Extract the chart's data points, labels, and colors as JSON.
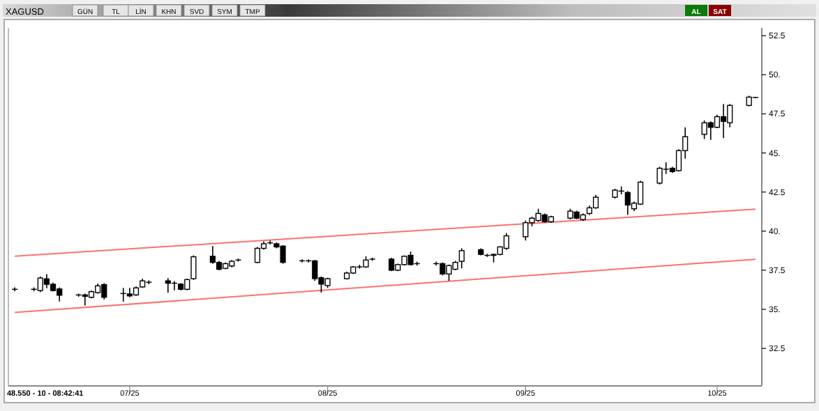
{
  "chart_data": {
    "type": "candlestick",
    "title": "XAGUSD",
    "annotations": [
      "48.550 - 10 - 08:42:41",
      "GÜN",
      "TL",
      "LİN",
      "KHN",
      "SVD",
      "SYM",
      "TMP",
      "AL",
      "SAT"
    ],
    "x": [
      "2025-06-13",
      "2025-06-16",
      "2025-06-17",
      "2025-06-18",
      "2025-06-19",
      "2025-06-20",
      "2025-06-23",
      "2025-06-24",
      "2025-06-25",
      "2025-06-26",
      "2025-06-27",
      "2025-06-30",
      "2025-07-01",
      "2025-07-02",
      "2025-07-03",
      "2025-07-04",
      "2025-07-07",
      "2025-07-08",
      "2025-07-09",
      "2025-07-10",
      "2025-07-11",
      "2025-07-14",
      "2025-07-15",
      "2025-07-16",
      "2025-07-17",
      "2025-07-18",
      "2025-07-21",
      "2025-07-22",
      "2025-07-23",
      "2025-07-24",
      "2025-07-25",
      "2025-07-28",
      "2025-07-29",
      "2025-07-30",
      "2025-07-31",
      "2025-08-01",
      "2025-08-04",
      "2025-08-05",
      "2025-08-06",
      "2025-08-07",
      "2025-08-08",
      "2025-08-11",
      "2025-08-12",
      "2025-08-13",
      "2025-08-14",
      "2025-08-15",
      "2025-08-18",
      "2025-08-19",
      "2025-08-20",
      "2025-08-21",
      "2025-08-22",
      "2025-08-25",
      "2025-08-26",
      "2025-08-27",
      "2025-08-28",
      "2025-08-29",
      "2025-09-01",
      "2025-09-02",
      "2025-09-03",
      "2025-09-04",
      "2025-09-05",
      "2025-09-08",
      "2025-09-09",
      "2025-09-10",
      "2025-09-11",
      "2025-09-12",
      "2025-09-15",
      "2025-09-16",
      "2025-09-17",
      "2025-09-18",
      "2025-09-19",
      "2025-09-22",
      "2025-09-23",
      "2025-09-24",
      "2025-09-25",
      "2025-09-26",
      "2025-09-29",
      "2025-09-30",
      "2025-10-01",
      "2025-10-02",
      "2025-10-03",
      "2025-10-06",
      "2025-10-07"
    ],
    "ohlc": [
      [
        36.28,
        36.4,
        36.15,
        36.28
      ],
      [
        36.28,
        36.4,
        36.15,
        36.28
      ],
      [
        36.2,
        37.1,
        36.1,
        37.0
      ],
      [
        36.95,
        37.25,
        36.35,
        36.6
      ],
      [
        36.6,
        36.7,
        36.15,
        36.2
      ],
      [
        36.3,
        36.4,
        35.5,
        35.9
      ],
      [
        35.92,
        36.0,
        35.8,
        35.92
      ],
      [
        35.92,
        36.0,
        35.25,
        35.83
      ],
      [
        35.77,
        36.2,
        35.7,
        36.13
      ],
      [
        36.07,
        36.65,
        36.0,
        36.5
      ],
      [
        36.58,
        36.67,
        35.63,
        35.77
      ],
      [
        36.01,
        36.37,
        35.48,
        36.01
      ],
      [
        35.98,
        36.37,
        35.77,
        35.86
      ],
      [
        35.92,
        36.46,
        35.86,
        36.37
      ],
      [
        36.43,
        36.96,
        36.37,
        36.82
      ],
      [
        36.73,
        36.85,
        36.6,
        36.73
      ],
      [
        36.82,
        37.0,
        36.07,
        36.67
      ],
      [
        36.67,
        36.8,
        36.22,
        36.67
      ],
      [
        36.61,
        36.67,
        36.22,
        36.28
      ],
      [
        36.28,
        36.96,
        36.22,
        36.9
      ],
      [
        36.96,
        38.45,
        36.88,
        38.36
      ],
      [
        38.39,
        39.04,
        37.92,
        38.0
      ],
      [
        38.0,
        38.1,
        37.5,
        37.56
      ],
      [
        37.62,
        38.0,
        37.56,
        37.92
      ],
      [
        37.77,
        38.15,
        37.68,
        38.07
      ],
      [
        38.15,
        38.25,
        38.05,
        38.15
      ],
      [
        38.0,
        38.99,
        37.95,
        38.9
      ],
      [
        38.9,
        39.34,
        38.81,
        39.19
      ],
      [
        39.25,
        39.4,
        39.15,
        39.25
      ],
      [
        39.19,
        39.28,
        38.9,
        38.99
      ],
      [
        39.04,
        39.1,
        37.92,
        38.0
      ],
      [
        38.1,
        38.2,
        38.0,
        38.1
      ],
      [
        38.1,
        38.2,
        38.0,
        38.1
      ],
      [
        38.1,
        38.15,
        36.82,
        36.96
      ],
      [
        37.02,
        37.1,
        36.07,
        36.61
      ],
      [
        36.52,
        37.02,
        36.37,
        36.96
      ],
      [
        36.96,
        37.41,
        36.9,
        37.32
      ],
      [
        37.32,
        37.77,
        37.26,
        37.71
      ],
      [
        37.71,
        37.85,
        37.6,
        37.71
      ],
      [
        37.71,
        38.39,
        37.65,
        38.15
      ],
      [
        38.21,
        38.3,
        38.1,
        38.21
      ],
      [
        38.21,
        38.3,
        37.44,
        37.5
      ],
      [
        37.5,
        37.92,
        37.44,
        37.86
      ],
      [
        37.86,
        38.45,
        37.8,
        38.39
      ],
      [
        38.45,
        38.69,
        37.8,
        37.86
      ],
      [
        37.92,
        38.05,
        37.8,
        37.92
      ],
      [
        37.92,
        38.05,
        37.8,
        37.92
      ],
      [
        37.92,
        38.0,
        37.17,
        37.26
      ],
      [
        37.26,
        37.86,
        36.82,
        37.8
      ],
      [
        37.56,
        38.1,
        37.5,
        38.0
      ],
      [
        38.07,
        38.9,
        37.62,
        38.75
      ],
      [
        38.81,
        38.9,
        38.45,
        38.51
      ],
      [
        38.45,
        38.55,
        38.35,
        38.45
      ],
      [
        38.51,
        38.57,
        38.0,
        38.45
      ],
      [
        38.51,
        39.04,
        38.45,
        38.99
      ],
      [
        38.9,
        39.88,
        38.81,
        39.7
      ],
      [
        39.64,
        40.68,
        39.4,
        40.54
      ],
      [
        40.54,
        40.92,
        40.3,
        40.83
      ],
      [
        40.68,
        41.43,
        40.6,
        41.13
      ],
      [
        41.04,
        41.13,
        40.54,
        40.6
      ],
      [
        40.6,
        40.98,
        40.54,
        40.92
      ],
      [
        40.83,
        41.43,
        40.74,
        41.28
      ],
      [
        41.22,
        41.31,
        40.77,
        40.83
      ],
      [
        40.74,
        41.13,
        40.65,
        41.04
      ],
      [
        41.13,
        41.64,
        41.04,
        41.49
      ],
      [
        41.49,
        42.32,
        41.43,
        42.17
      ],
      [
        42.17,
        42.71,
        42.08,
        42.62
      ],
      [
        42.56,
        42.86,
        42.35,
        42.56
      ],
      [
        42.47,
        42.56,
        41.04,
        41.67
      ],
      [
        41.43,
        41.88,
        41.28,
        41.79
      ],
      [
        41.73,
        43.22,
        41.67,
        43.13
      ],
      [
        43.07,
        44.11,
        42.98,
        44.02
      ],
      [
        43.96,
        44.4,
        43.66,
        43.96
      ],
      [
        44.02,
        44.11,
        43.72,
        43.81
      ],
      [
        43.87,
        45.24,
        43.81,
        45.15
      ],
      [
        45.15,
        46.64,
        44.64,
        46.04
      ],
      [
        46.19,
        47.08,
        45.89,
        46.93
      ],
      [
        46.93,
        47.02,
        45.83,
        46.64
      ],
      [
        46.64,
        47.44,
        46.58,
        47.32
      ],
      [
        47.32,
        48.13,
        45.95,
        47.02
      ],
      [
        46.93,
        48.13,
        46.64,
        48.04
      ],
      [
        48.04,
        48.66,
        47.98,
        48.57
      ],
      [
        48.55,
        48.57,
        48.5,
        48.55
      ]
    ],
    "series": [
      {
        "type": "line",
        "color": "#ff7070",
        "x": [
          "2025-06-13",
          "2025-10-07"
        ],
        "values": [
          38.4,
          41.4
        ]
      },
      {
        "type": "line",
        "color": "#ff7070",
        "x": [
          "2025-06-13",
          "2025-10-07"
        ],
        "values": [
          34.8,
          38.2
        ]
      }
    ],
    "xlim": [
      "2025-06-12",
      "2025-10-08"
    ],
    "ylim": [
      30.1,
      53.0
    ],
    "yticks": [
      {
        "value": 32.5,
        "label": "32.5"
      },
      {
        "value": 35,
        "label": "35."
      },
      {
        "value": 37.5,
        "label": "37.5"
      },
      {
        "value": 40,
        "label": "40."
      },
      {
        "value": 42.5,
        "label": "42.5"
      },
      {
        "value": 45,
        "label": "45."
      },
      {
        "value": 47.5,
        "label": "47.5"
      },
      {
        "value": 50,
        "label": "50."
      },
      {
        "value": 52.5,
        "label": "52.5"
      }
    ],
    "xticks": [
      {
        "value": "2025-07-01",
        "label": "07/25"
      },
      {
        "value": "2025-08-01",
        "label": "08/25"
      },
      {
        "value": "2025-09-01",
        "label": "09/25"
      },
      {
        "value": "2025-10-01",
        "label": "10/25"
      }
    ],
    "grid": false
  }
}
